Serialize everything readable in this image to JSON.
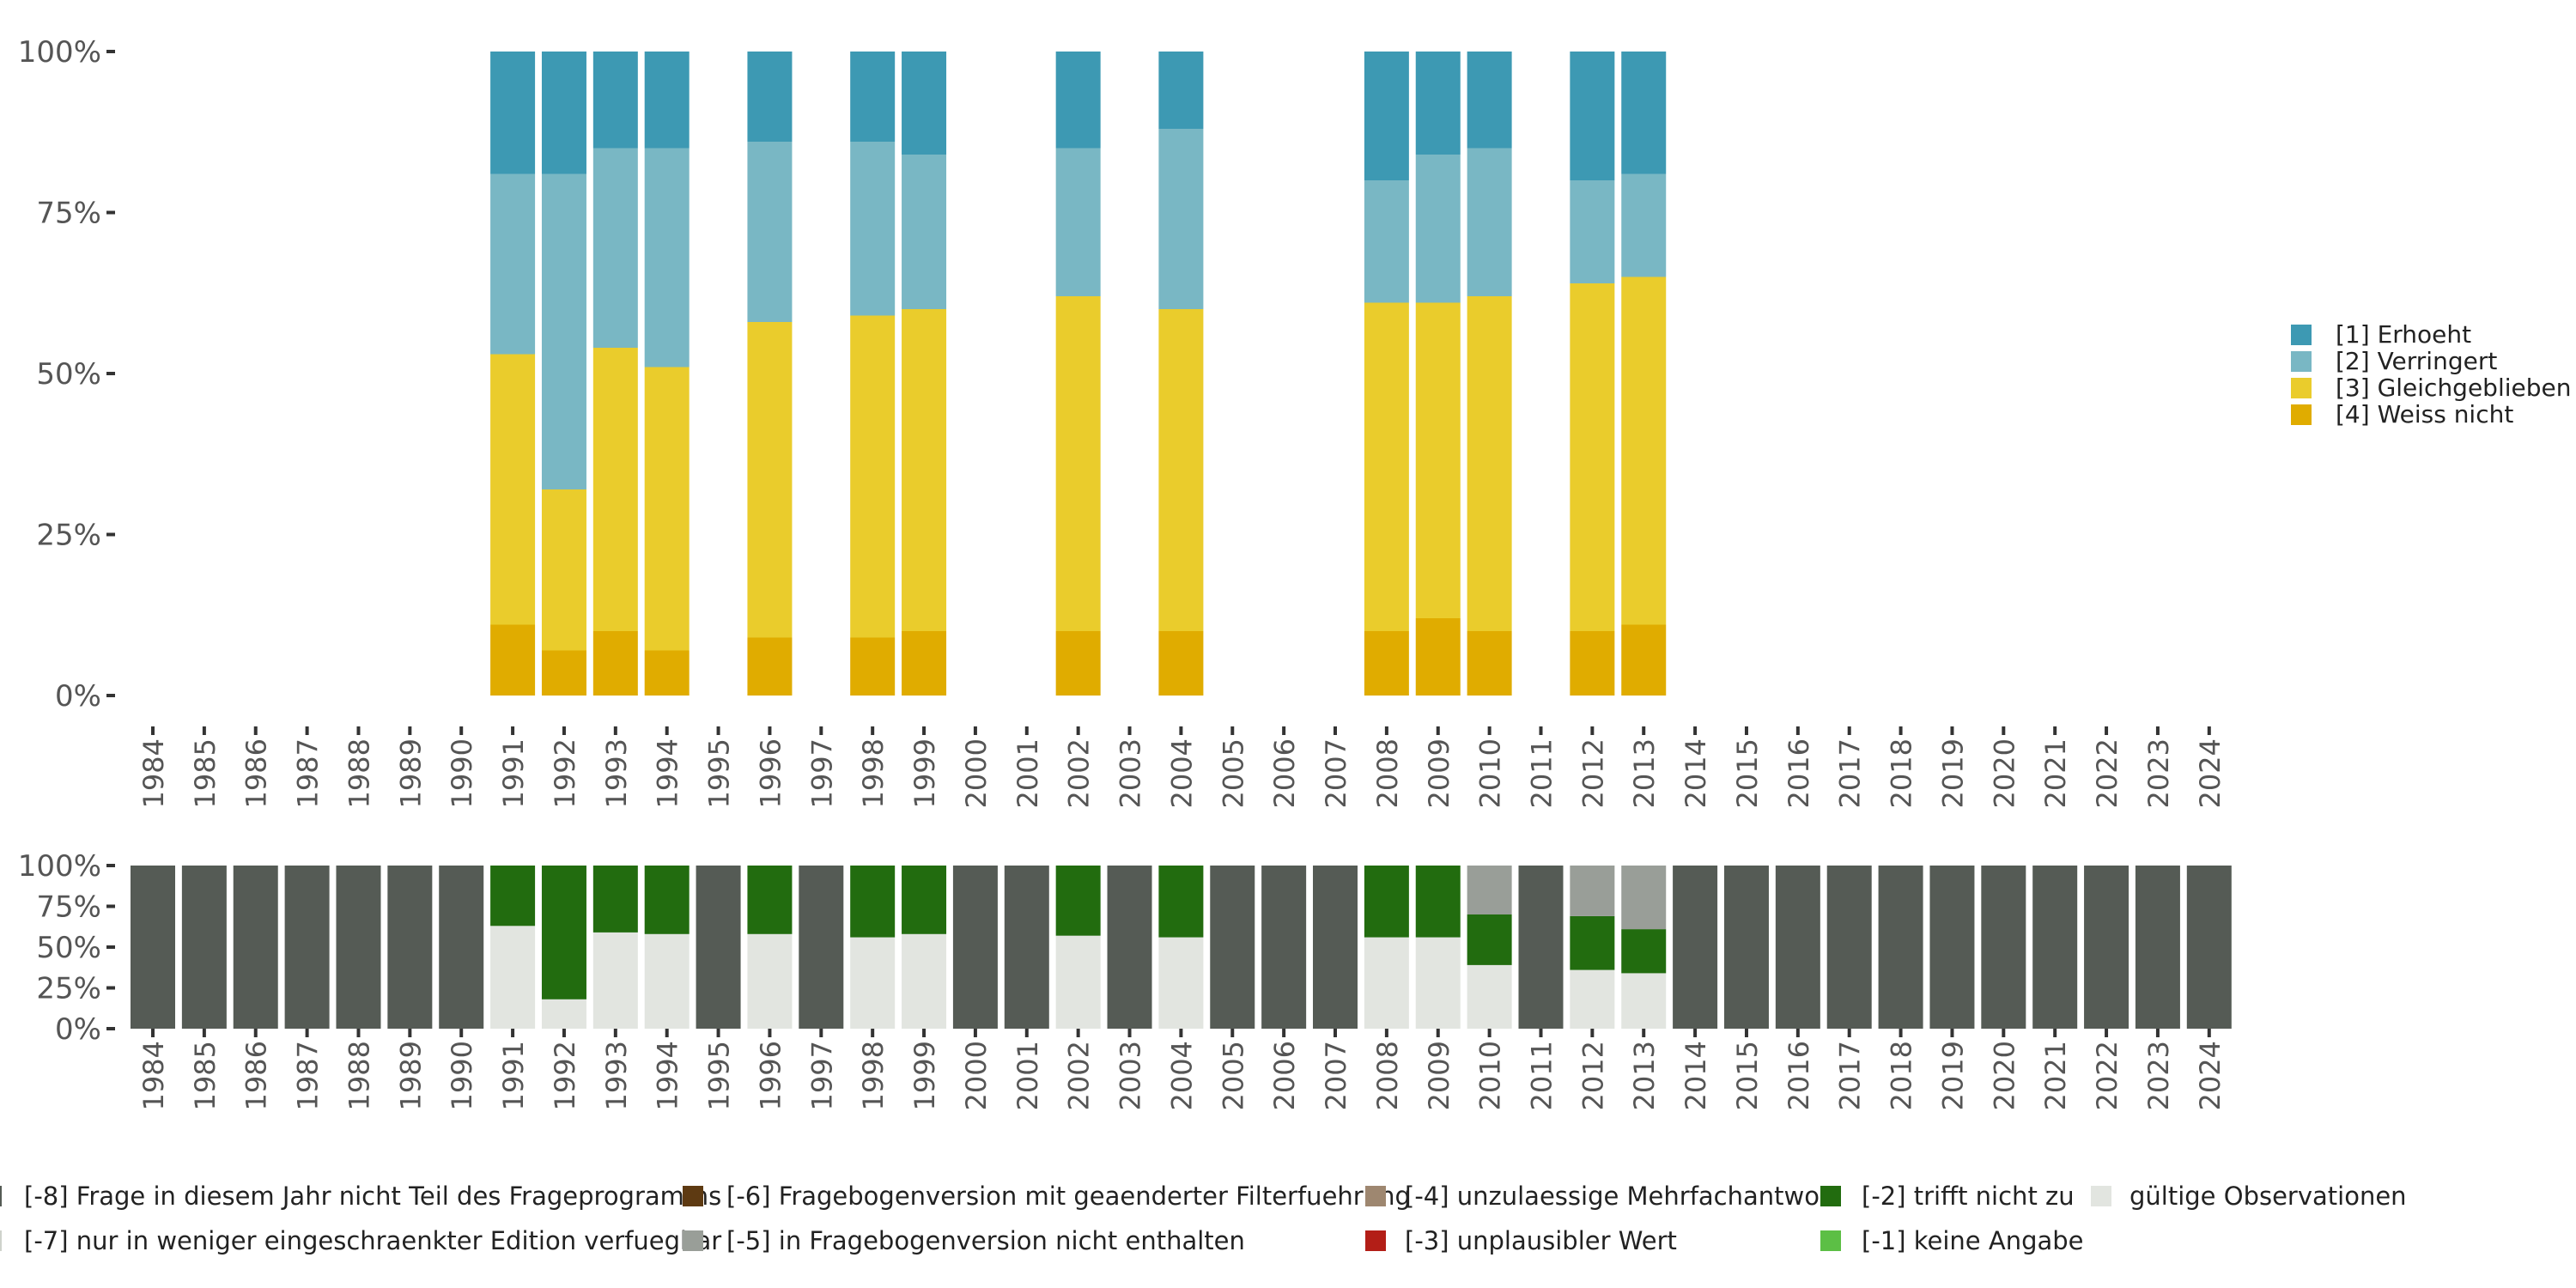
{
  "chart_data": [
    {
      "type": "stacked-bar",
      "title": "",
      "xlabel": "",
      "ylabel": "",
      "ylim": [
        0,
        100
      ],
      "y_ticks": [
        "0%",
        "25%",
        "50%",
        "75%",
        "100%"
      ],
      "categories": [
        "1984",
        "1985",
        "1986",
        "1987",
        "1988",
        "1989",
        "1990",
        "1991",
        "1992",
        "1993",
        "1994",
        "1995",
        "1996",
        "1997",
        "1998",
        "1999",
        "2000",
        "2001",
        "2002",
        "2003",
        "2004",
        "2005",
        "2006",
        "2007",
        "2008",
        "2009",
        "2010",
        "2011",
        "2012",
        "2013",
        "2014",
        "2015",
        "2016",
        "2017",
        "2018",
        "2019",
        "2020",
        "2021",
        "2022",
        "2023",
        "2024"
      ],
      "legend_position": "right",
      "series": [
        {
          "name": "[4] Weiss nicht",
          "color": "#e0ac00",
          "values": {
            "1991": 11,
            "1992": 7,
            "1993": 10,
            "1994": 7,
            "1996": 9,
            "1998": 9,
            "1999": 10,
            "2002": 10,
            "2004": 10,
            "2008": 10,
            "2009": 12,
            "2010": 10,
            "2012": 10,
            "2013": 11
          }
        },
        {
          "name": "[3] Gleichgeblieben",
          "color": "#eacc2c",
          "values": {
            "1991": 42,
            "1992": 25,
            "1993": 44,
            "1994": 44,
            "1996": 49,
            "1998": 50,
            "1999": 50,
            "2002": 52,
            "2004": 50,
            "2008": 51,
            "2009": 49,
            "2010": 52,
            "2012": 54,
            "2013": 54
          }
        },
        {
          "name": "[2] Verringert",
          "color": "#79b7c4",
          "values": {
            "1991": 28,
            "1992": 49,
            "1993": 31,
            "1994": 34,
            "1996": 28,
            "1998": 27,
            "1999": 24,
            "2002": 23,
            "2004": 28,
            "2008": 19,
            "2009": 23,
            "2010": 23,
            "2012": 16,
            "2013": 16
          }
        },
        {
          "name": "[1] Erhoeht",
          "color": "#3d99b3",
          "values": {
            "1991": 19,
            "1992": 19,
            "1993": 15,
            "1994": 15,
            "1996": 14,
            "1998": 14,
            "1999": 16,
            "2002": 15,
            "2004": 12,
            "2008": 20,
            "2009": 16,
            "2010": 15,
            "2012": 20,
            "2013": 19
          }
        }
      ]
    },
    {
      "type": "stacked-bar",
      "title": "",
      "xlabel": "",
      "ylabel": "",
      "ylim": [
        0,
        100
      ],
      "y_ticks": [
        "0%",
        "25%",
        "50%",
        "75%",
        "100%"
      ],
      "categories": [
        "1984",
        "1985",
        "1986",
        "1987",
        "1988",
        "1989",
        "1990",
        "1991",
        "1992",
        "1993",
        "1994",
        "1995",
        "1996",
        "1997",
        "1998",
        "1999",
        "2000",
        "2001",
        "2002",
        "2003",
        "2004",
        "2005",
        "2006",
        "2007",
        "2008",
        "2009",
        "2010",
        "2011",
        "2012",
        "2013",
        "2014",
        "2015",
        "2016",
        "2017",
        "2018",
        "2019",
        "2020",
        "2021",
        "2022",
        "2023",
        "2024"
      ],
      "legend_position": "bottom",
      "series": [
        {
          "name": "gültige Observationen",
          "color": "#e2e5e0",
          "values": {
            "1991": 63,
            "1992": 18,
            "1993": 59,
            "1994": 58,
            "1996": 58,
            "1998": 56,
            "1999": 58,
            "2002": 57,
            "2004": 56,
            "2008": 56,
            "2009": 56,
            "2010": 39,
            "2012": 36,
            "2013": 34
          }
        },
        {
          "name": "[-2] trifft nicht zu",
          "color": "#226c0f",
          "values": {
            "1991": 37,
            "1992": 82,
            "1993": 41,
            "1994": 42,
            "1996": 42,
            "1998": 44,
            "1999": 42,
            "2002": 43,
            "2004": 44,
            "2008": 44,
            "2009": 44,
            "2010": 31,
            "2012": 33,
            "2013": 27
          }
        },
        {
          "name": "[-5] in Fragebogenversion nicht enthalten",
          "color": "#999e98",
          "values": {
            "2010": 30,
            "2012": 31,
            "2013": 39
          }
        },
        {
          "name": "[-8] Frage in diesem Jahr nicht Teil des Frageprogramms",
          "color": "#555b55",
          "values": {
            "1984": 100,
            "1985": 100,
            "1986": 100,
            "1987": 100,
            "1988": 100,
            "1989": 100,
            "1990": 100,
            "1995": 100,
            "1997": 100,
            "2000": 100,
            "2001": 100,
            "2003": 100,
            "2005": 100,
            "2006": 100,
            "2007": 100,
            "2011": 100,
            "2014": 100,
            "2015": 100,
            "2016": 100,
            "2017": 100,
            "2018": 100,
            "2019": 100,
            "2020": 100,
            "2021": 100,
            "2022": 100,
            "2023": 100,
            "2024": 100
          }
        }
      ],
      "legend": [
        {
          "label": "[-8] Frage in diesem Jahr nicht Teil des Frageprogramms",
          "color": "#555b55"
        },
        {
          "label": "[-7] nur in weniger eingeschraenkter Edition verfuegbar",
          "color": "#cfd3cc"
        },
        {
          "label": "[-6] Fragebogenversion mit geaenderter Filterfuehrung",
          "color": "#5e3a12"
        },
        {
          "label": "[-5] in Fragebogenversion nicht enthalten",
          "color": "#999e98"
        },
        {
          "label": "[-4] unzulaessige Mehrfachantwort",
          "color": "#9e8770"
        },
        {
          "label": "[-3] unplausibler Wert",
          "color": "#b31e17"
        },
        {
          "label": "[-2] trifft nicht zu",
          "color": "#226c0f"
        },
        {
          "label": "[-1] keine Angabe",
          "color": "#5cbf45"
        },
        {
          "label": "gültige Observationen",
          "color": "#e2e5e0"
        }
      ]
    }
  ]
}
